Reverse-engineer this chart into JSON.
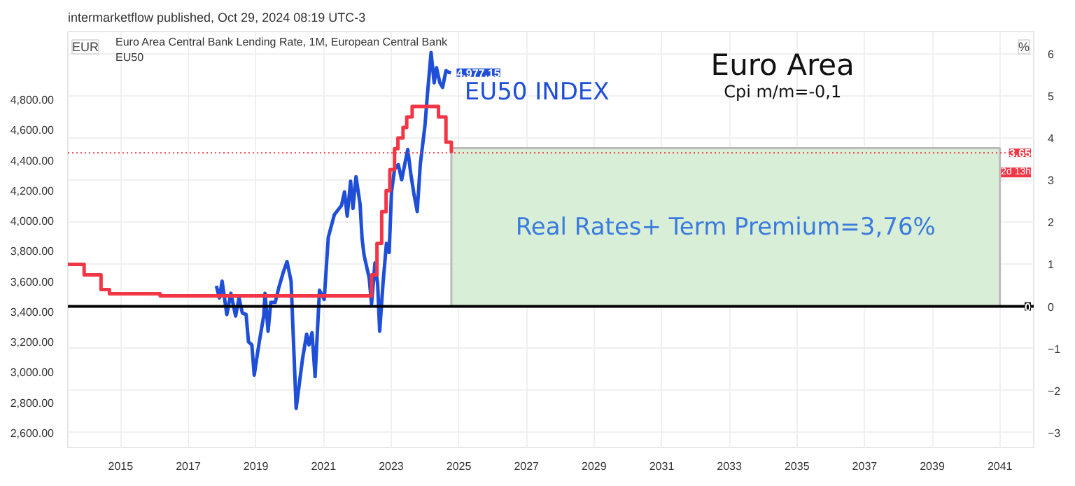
{
  "chart_data": {
    "type": "line",
    "title": "Euro Area Central Bank Lending Rate, 1M, European Central Bank",
    "subtitle": "EU50",
    "ylabel": "EUR",
    "y2label": "%",
    "xlim": [
      2013.44,
      2042.0
    ],
    "xticks": [
      2015,
      2017,
      2019,
      2021,
      2023,
      2025,
      2027,
      2029,
      2031,
      2033,
      2035,
      2037,
      2039,
      2041
    ],
    "ylim": [
      2502,
      5249
    ],
    "yticks": [
      {
        "value": 2600,
        "label": "2,600.00"
      },
      {
        "value": 2800,
        "label": "2,800.00"
      },
      {
        "value": 3000,
        "label": "3,000.00"
      },
      {
        "value": 3200,
        "label": "3,200.00"
      },
      {
        "value": 3400,
        "label": "3,400.00"
      },
      {
        "value": 3600,
        "label": "3,600.00"
      },
      {
        "value": 3800,
        "label": "3,800.00"
      },
      {
        "value": 4000,
        "label": "4,000.00"
      },
      {
        "value": 4200,
        "label": "4,200.00"
      },
      {
        "value": 4400,
        "label": "4,400.00"
      },
      {
        "value": 4600,
        "label": "4,600.00"
      },
      {
        "value": 4800,
        "label": "4,800.00"
      }
    ],
    "y2lim": [
      -3.35,
      6.53
    ],
    "y2ticks": [
      -3,
      -2,
      -1,
      0,
      1,
      2,
      3,
      4,
      5,
      6
    ],
    "grid": true,
    "line_style": "solid",
    "series": [
      {
        "name": "EU50 INDEX",
        "color": "#1f4fd6",
        "x": [
          2017.83,
          2017.92,
          2018.0,
          2018.14,
          2018.26,
          2018.4,
          2018.5,
          2018.6,
          2018.71,
          2018.78,
          2018.88,
          2018.95,
          2019.1,
          2019.23,
          2019.27,
          2019.36,
          2019.44,
          2019.57,
          2019.68,
          2019.81,
          2019.92,
          2020.04,
          2020.19,
          2020.38,
          2020.5,
          2020.57,
          2020.66,
          2020.75,
          2020.88,
          2021.02,
          2021.14,
          2021.32,
          2021.53,
          2021.62,
          2021.7,
          2021.8,
          2021.87,
          2021.96,
          2022.08,
          2022.14,
          2022.2,
          2022.35,
          2022.42,
          2022.52,
          2022.6,
          2022.66,
          2022.76,
          2022.86,
          2022.94,
          2023.01,
          2023.1,
          2023.21,
          2023.31,
          2023.4,
          2023.49,
          2023.58,
          2023.67,
          2023.77,
          2023.86,
          2024.0,
          2024.07,
          2024.18,
          2024.27,
          2024.34,
          2024.44,
          2024.52,
          2024.62,
          2024.7,
          2024.77
        ],
        "values": [
          3570,
          3490,
          3600,
          3380,
          3520,
          3370,
          3490,
          3390,
          3380,
          3200,
          3180,
          2980,
          3200,
          3370,
          3520,
          3270,
          3460,
          3460,
          3560,
          3660,
          3730,
          3600,
          2760,
          3090,
          3250,
          3180,
          3260,
          2970,
          3540,
          3480,
          3890,
          4040,
          4100,
          4190,
          4030,
          4260,
          4080,
          4290,
          4110,
          3880,
          3770,
          3620,
          3450,
          3720,
          3580,
          3270,
          3590,
          3850,
          3790,
          4190,
          4340,
          4370,
          4270,
          4370,
          4470,
          4310,
          4180,
          4060,
          4370,
          4630,
          4830,
          5110,
          4910,
          5010,
          4910,
          4880,
          4990,
          4980,
          4977.15
        ]
      },
      {
        "type": "step",
        "axis": "y2",
        "color": "#f23645",
        "x": [
          2013.44,
          2013.92,
          2014.42,
          2014.67,
          2016.17,
          2022.42,
          2022.58,
          2022.72,
          2022.85,
          2022.96,
          2023.1,
          2023.2,
          2023.35,
          2023.46,
          2023.62,
          2024.4,
          2024.62,
          2024.78
        ],
        "values": [
          1.0,
          0.75,
          0.4,
          0.3,
          0.25,
          0.75,
          1.5,
          2.25,
          2.75,
          3.25,
          3.75,
          4.0,
          4.25,
          4.5,
          4.75,
          4.5,
          3.9,
          3.65
        ]
      }
    ],
    "ref_lines": [
      {
        "axis": "y2",
        "value": 0,
        "label": "0",
        "color": "#000000",
        "line_style": "solid"
      },
      {
        "axis": "y2",
        "value": 3.65,
        "label": "3.65",
        "color": "#f23645",
        "line_style": "dotted"
      }
    ],
    "bands": [
      {
        "axis": "y2",
        "from": 0,
        "to": 3.76,
        "label": "Real Rates+ Term Premium=3,76%",
        "color": "#d9eed6"
      }
    ],
    "annotations": [
      "intermarketflow published, Oct 29, 2024 08:19 UTC-3",
      "Euro Area",
      "Cpi m/m=-0,1",
      "2d 13h",
      {
        "text": "4,977.15",
        "x": 2024.77,
        "y": 4977.15
      }
    ]
  }
}
